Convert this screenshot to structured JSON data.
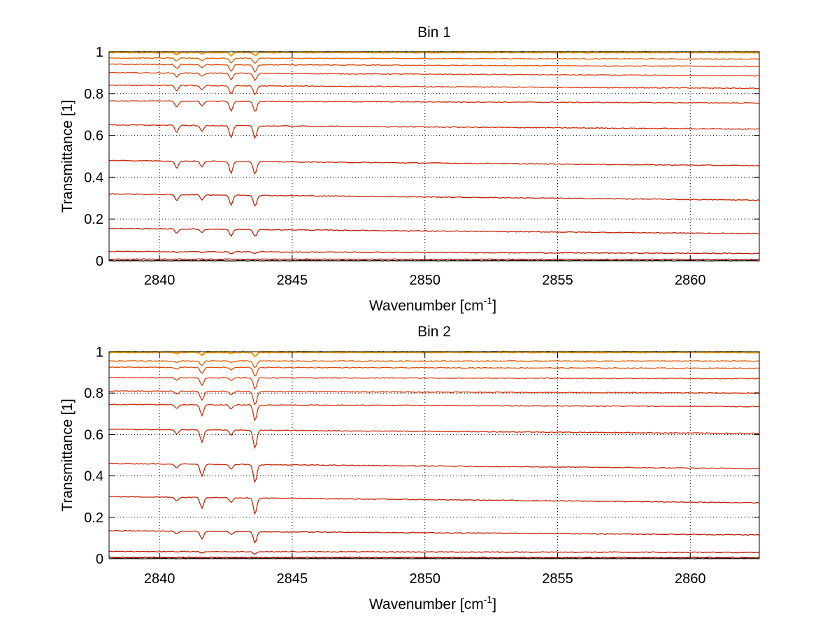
{
  "chart_data": [
    {
      "type": "line",
      "title": "Bin 1",
      "xlabel": "Wavenumber [cm",
      "xlabel_sup": "-1",
      "xlabel_end": "]",
      "ylabel": "Transmittance [1]",
      "xlim": [
        2838.1,
        2862.6
      ],
      "ylim": [
        0,
        1
      ],
      "grid": true,
      "x_ticks": [
        2840,
        2845,
        2850,
        2855,
        2860
      ],
      "x_tick_labels": [
        "2840",
        "2845",
        "2850",
        "2855",
        "2860"
      ],
      "y_ticks": [
        0,
        0.2,
        0.4,
        0.6,
        0.8,
        1
      ],
      "y_tick_labels": [
        "0",
        "0.2",
        "0.4",
        "0.6",
        "0.8",
        "1"
      ],
      "dips": [
        {
          "x": 2840.65,
          "rel": 0.5
        },
        {
          "x": 2841.6,
          "rel": 0.4
        },
        {
          "x": 2842.7,
          "rel": 0.8
        },
        {
          "x": 2843.6,
          "rel": 0.85
        }
      ],
      "series": [
        {
          "values": [
            1.0,
            1.0
          ],
          "depth": 0.02,
          "color": "#e6c000"
        },
        {
          "values": [
            0.998,
            0.998
          ],
          "depth": 0.02,
          "color": "#ff8c00"
        },
        {
          "values": [
            0.995,
            0.995
          ],
          "depth": 0.02,
          "color": "#f5a623"
        },
        {
          "values": [
            0.97,
            0.965
          ],
          "depth": 0.03,
          "color": "#e65c00"
        },
        {
          "values": [
            0.94,
            0.93
          ],
          "depth": 0.04,
          "color": "#e04a0a"
        },
        {
          "values": [
            0.9,
            0.885
          ],
          "depth": 0.04,
          "color": "#dd3d10"
        },
        {
          "values": [
            0.84,
            0.825
          ],
          "depth": 0.05,
          "color": "#d8360c"
        },
        {
          "values": [
            0.765,
            0.755
          ],
          "depth": 0.06,
          "color": "#d22e0a"
        },
        {
          "values": [
            0.65,
            0.63
          ],
          "depth": 0.07,
          "color": "#cc2a0a"
        },
        {
          "values": [
            0.48,
            0.455
          ],
          "depth": 0.07,
          "color": "#c82608"
        },
        {
          "values": [
            0.32,
            0.29
          ],
          "depth": 0.06,
          "color": "#c42206"
        },
        {
          "values": [
            0.155,
            0.13
          ],
          "depth": 0.04,
          "color": "#c01e05"
        },
        {
          "values": [
            0.045,
            0.035
          ],
          "depth": 0.01,
          "color": "#bb1a04"
        },
        {
          "values": [
            0.008,
            0.006
          ],
          "depth": 0.0,
          "color": "#9a1002"
        },
        {
          "values": [
            0.001,
            0.001
          ],
          "depth": 0.0,
          "color": "#4a0000"
        }
      ]
    },
    {
      "type": "line",
      "title": "Bin 2",
      "xlabel": "Wavenumber [cm",
      "xlabel_sup": "-1",
      "xlabel_end": "]",
      "ylabel": "Transmittance [1]",
      "xlim": [
        2838.1,
        2862.6
      ],
      "ylim": [
        0,
        1
      ],
      "grid": true,
      "x_ticks": [
        2840,
        2845,
        2850,
        2855,
        2860
      ],
      "x_tick_labels": [
        "2840",
        "2845",
        "2850",
        "2855",
        "2860"
      ],
      "y_ticks": [
        0,
        0.2,
        0.4,
        0.6,
        0.8,
        1
      ],
      "y_tick_labels": [
        "0",
        "0.2",
        "0.4",
        "0.6",
        "0.8",
        "1"
      ],
      "dips": [
        {
          "x": 2840.65,
          "rel": 0.25
        },
        {
          "x": 2841.6,
          "rel": 0.75
        },
        {
          "x": 2842.7,
          "rel": 0.3
        },
        {
          "x": 2843.6,
          "rel": 1.1
        }
      ],
      "series": [
        {
          "values": [
            1.0,
            1.0
          ],
          "depth": 0.02,
          "color": "#e6c000"
        },
        {
          "values": [
            0.998,
            0.998
          ],
          "depth": 0.02,
          "color": "#ff8c00"
        },
        {
          "values": [
            0.995,
            0.995
          ],
          "depth": 0.02,
          "color": "#f5a623"
        },
        {
          "values": [
            0.955,
            0.955
          ],
          "depth": 0.03,
          "color": "#e65c00"
        },
        {
          "values": [
            0.925,
            0.92
          ],
          "depth": 0.04,
          "color": "#e04a0a"
        },
        {
          "values": [
            0.875,
            0.87
          ],
          "depth": 0.05,
          "color": "#dd3d10"
        },
        {
          "values": [
            0.81,
            0.8
          ],
          "depth": 0.06,
          "color": "#d8360c"
        },
        {
          "values": [
            0.745,
            0.735
          ],
          "depth": 0.07,
          "color": "#d22e0a"
        },
        {
          "values": [
            0.625,
            0.605
          ],
          "depth": 0.08,
          "color": "#cc2a0a"
        },
        {
          "values": [
            0.46,
            0.435
          ],
          "depth": 0.08,
          "color": "#c82608"
        },
        {
          "values": [
            0.3,
            0.27
          ],
          "depth": 0.07,
          "color": "#c42206"
        },
        {
          "values": [
            0.135,
            0.115
          ],
          "depth": 0.05,
          "color": "#c01e05"
        },
        {
          "values": [
            0.035,
            0.03
          ],
          "depth": 0.01,
          "color": "#bb1a04"
        },
        {
          "values": [
            0.006,
            0.005
          ],
          "depth": 0.0,
          "color": "#9a1002"
        },
        {
          "values": [
            0.001,
            0.001
          ],
          "depth": 0.0,
          "color": "#4a0000"
        }
      ]
    }
  ]
}
